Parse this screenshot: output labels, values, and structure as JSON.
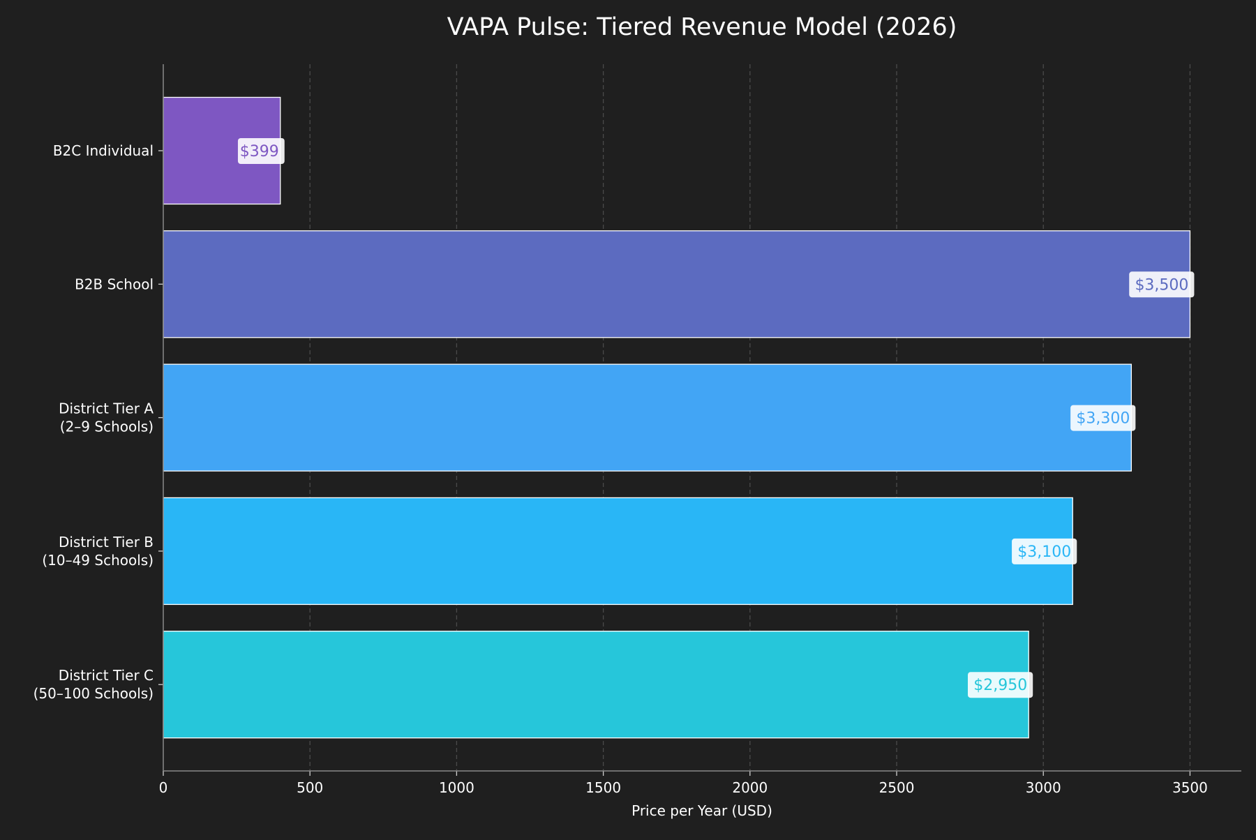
{
  "chart_data": {
    "type": "bar",
    "orientation": "horizontal",
    "title": "VAPA Pulse: Tiered Revenue Model (2026)",
    "xlabel": "Price per Year (USD)",
    "ylabel": "",
    "categories": [
      [
        "B2C Individual"
      ],
      [
        "B2B School"
      ],
      [
        "District Tier A",
        "(2–9 Schools)"
      ],
      [
        "District Tier B",
        "(10–49 Schools)"
      ],
      [
        "District Tier C",
        "(50–100 Schools)"
      ]
    ],
    "values": [
      399,
      3500,
      3300,
      3100,
      2950
    ],
    "data_labels": [
      "$399",
      "$3,500",
      "$3,300",
      "$3,100",
      "$2,950"
    ],
    "colors": [
      "#7E57C2",
      "#5C6BC0",
      "#42A5F5",
      "#29B6F6",
      "#26C6DA"
    ],
    "xlim": [
      0,
      3675
    ],
    "xticks": [
      0,
      500,
      1000,
      1500,
      2000,
      2500,
      3000,
      3500
    ],
    "grid": "vertical dashed",
    "background": "#1f1f1f"
  }
}
